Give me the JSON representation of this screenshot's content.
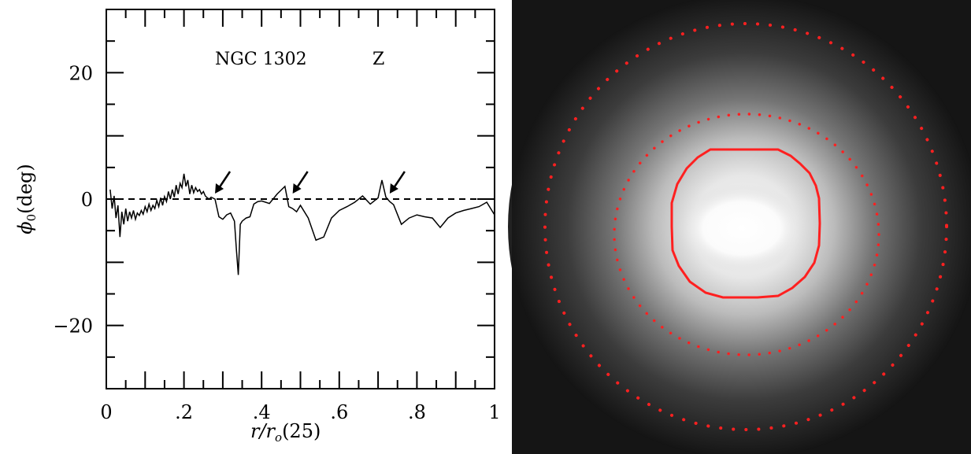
{
  "chart_data": {
    "type": "line",
    "title": "NGC  1302",
    "band": "Z",
    "xlabel": "r/r",
    "xlabel_sub": "o",
    "xlabel_suffix": "(25)",
    "ylabel": "ϕ",
    "ylabel_sub": "0",
    "ylabel_suffix": "(deg)",
    "xlim": [
      0,
      1
    ],
    "ylim": [
      -30,
      30
    ],
    "x_ticks": [
      {
        "value": 0,
        "label": "0"
      },
      {
        "value": 0.2,
        "label": ".2"
      },
      {
        "value": 0.4,
        "label": ".4"
      },
      {
        "value": 0.6,
        "label": ".6"
      },
      {
        "value": 0.8,
        "label": ".8"
      },
      {
        "value": 1,
        "label": "1"
      }
    ],
    "y_ticks": [
      {
        "value": 20,
        "label": "20"
      },
      {
        "value": 0,
        "label": "0"
      },
      {
        "value": -20,
        "label": "−20"
      }
    ],
    "reference_line": {
      "y": 0,
      "style": "dashed"
    },
    "arrows_at_x": [
      0.28,
      0.48,
      0.73
    ],
    "series": [
      {
        "x": [
          0.01,
          0.015,
          0.02,
          0.025,
          0.03,
          0.035,
          0.04,
          0.045,
          0.05,
          0.055,
          0.06,
          0.065,
          0.07,
          0.075,
          0.08,
          0.085,
          0.09,
          0.095,
          0.1,
          0.105,
          0.11,
          0.115,
          0.12,
          0.125,
          0.13,
          0.135,
          0.14,
          0.145,
          0.15,
          0.155,
          0.16,
          0.165,
          0.17,
          0.175,
          0.18,
          0.185,
          0.19,
          0.195,
          0.2,
          0.205,
          0.21,
          0.215,
          0.22,
          0.225,
          0.23,
          0.235,
          0.24,
          0.245,
          0.25,
          0.255,
          0.26,
          0.265,
          0.27,
          0.28,
          0.29,
          0.3,
          0.31,
          0.32,
          0.33,
          0.335,
          0.34,
          0.345,
          0.35,
          0.36,
          0.37,
          0.38,
          0.39,
          0.4,
          0.42,
          0.44,
          0.46,
          0.47,
          0.48,
          0.49,
          0.5,
          0.52,
          0.54,
          0.56,
          0.58,
          0.6,
          0.62,
          0.64,
          0.66,
          0.68,
          0.7,
          0.71,
          0.72,
          0.73,
          0.74,
          0.76,
          0.78,
          0.8,
          0.82,
          0.84,
          0.86,
          0.88,
          0.9,
          0.92,
          0.94,
          0.96,
          0.98,
          0.99,
          1.0
        ],
        "y": [
          1.5,
          -1.5,
          0.5,
          -3.0,
          -1.0,
          -6.0,
          -2.0,
          -4.0,
          -1.5,
          -3.5,
          -2.0,
          -3.0,
          -1.8,
          -3.2,
          -2.2,
          -2.6,
          -1.8,
          -2.4,
          -1.2,
          -2.0,
          -0.8,
          -1.8,
          -1.0,
          -1.5,
          -0.2,
          -1.2,
          0.2,
          -1.0,
          0.4,
          -0.4,
          1.2,
          0.0,
          1.5,
          0.3,
          2.2,
          0.8,
          2.5,
          1.8,
          4.0,
          2.0,
          3.0,
          0.8,
          2.2,
          1.0,
          1.8,
          1.2,
          1.5,
          0.8,
          1.2,
          0.5,
          0.2,
          0.0,
          0.3,
          0.0,
          -2.8,
          -3.2,
          -2.5,
          -2.2,
          -3.5,
          -8.0,
          -12.0,
          -4.0,
          -3.5,
          -3.0,
          -2.8,
          -0.8,
          -0.4,
          -0.3,
          -0.7,
          0.8,
          2.0,
          -1.2,
          -1.5,
          -2.0,
          -1.0,
          -3.0,
          -6.5,
          -6.0,
          -3.0,
          -1.8,
          -1.2,
          -0.5,
          0.5,
          -0.8,
          0.2,
          3.0,
          0.3,
          -0.4,
          -0.9,
          -4.0,
          -3.0,
          -2.5,
          -2.8,
          -3.0,
          -4.5,
          -3.0,
          -2.2,
          -1.8,
          -1.5,
          -1.2,
          -0.5,
          -1.5,
          -2.5
        ]
      }
    ],
    "grid": false,
    "legend": "none"
  },
  "image_panel": {
    "object": "NGC 1302",
    "overlay_color": "#ff2020",
    "overlays": [
      "solid contour",
      "dotted ellipse",
      "dotted ellipse"
    ]
  }
}
